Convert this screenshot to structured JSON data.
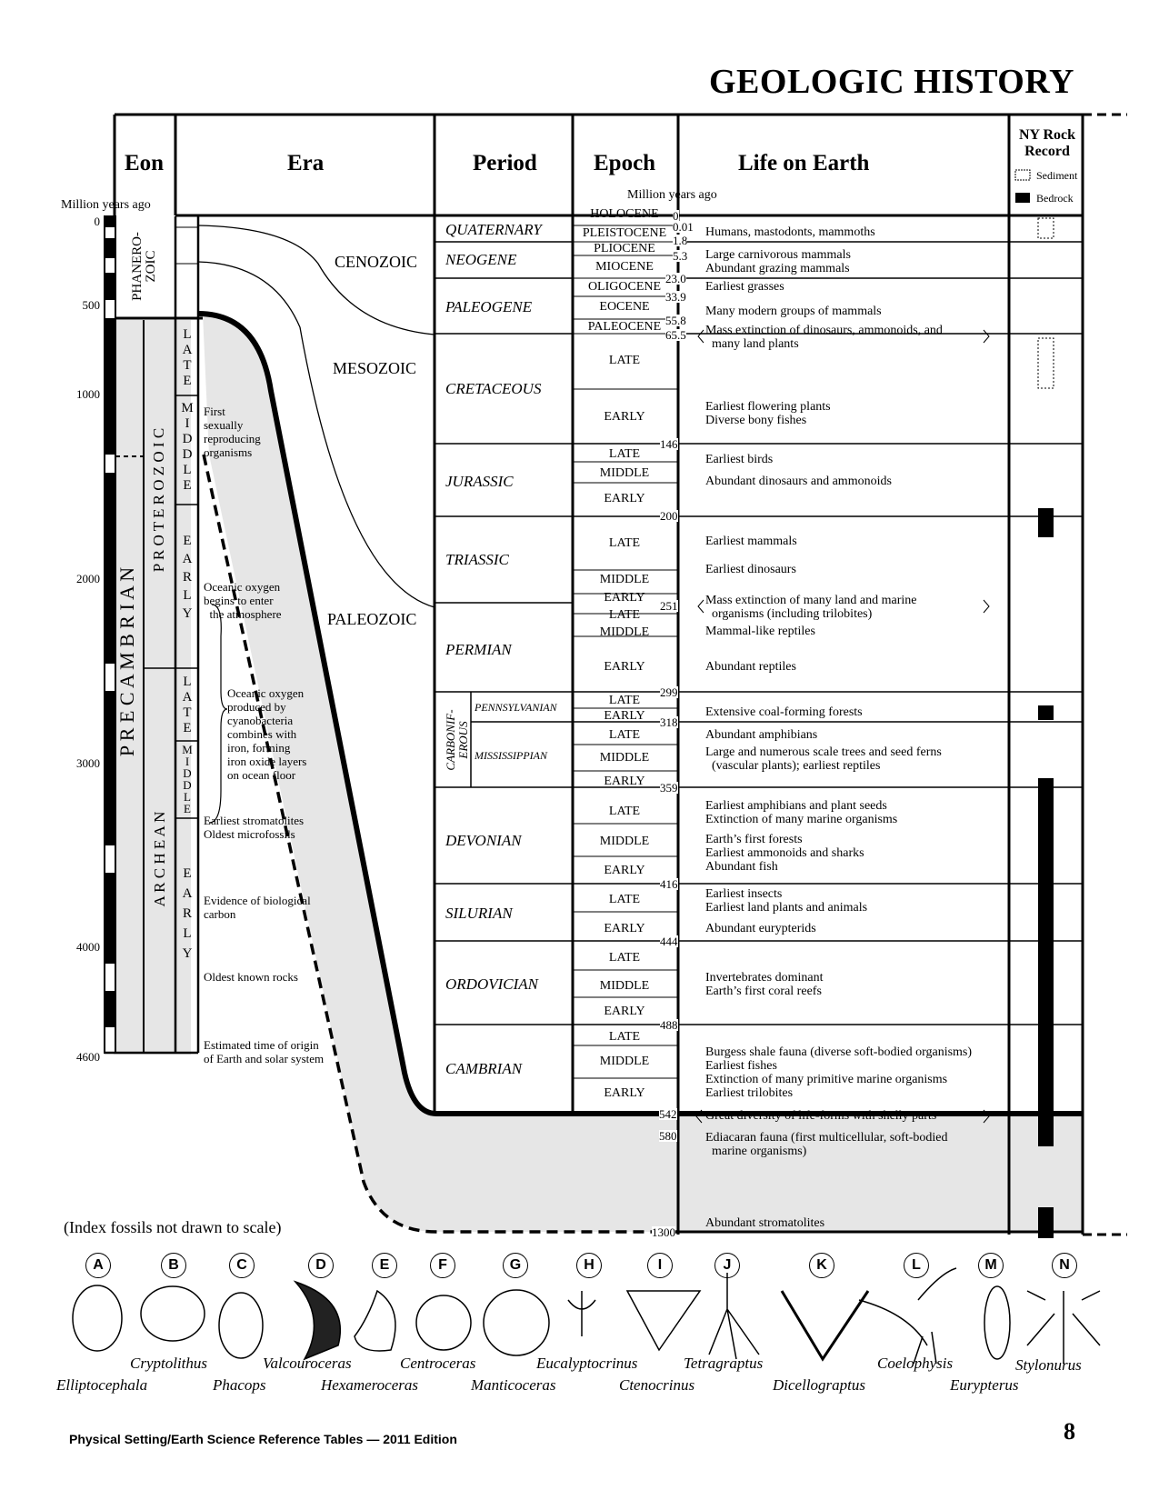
{
  "title": "GEOLOGIC HISTORY",
  "headers": {
    "eon": "Eon",
    "era": "Era",
    "period": "Period",
    "epoch": "Epoch",
    "life": "Life on Earth",
    "ny_rock_record": "NY Rock Record",
    "sediment": "Sediment",
    "bedrock": "Bedrock",
    "mya_left": "Million years ago",
    "mya_right": "Million years ago"
  },
  "left_scale": [
    "0",
    "500",
    "1000",
    "2000",
    "3000",
    "4000",
    "4600"
  ],
  "eons": {
    "phanerozoic": "PHANERO-\nZOIC",
    "precambrian": "P R E C A M B R I A N",
    "proterozoic": "P R O T E R O Z O I C",
    "archean": "A R C H E A N"
  },
  "subdivisions": [
    "L\nA\nT\nE",
    "M\nI\nD\nD\nL\nE",
    "E\nA\nR\nL\nY",
    "L\nA\nT\nE",
    "M\nI\nD\nD\nL\nE",
    "E\nA\nR\nL\nY"
  ],
  "early_events": [
    "First\nsexually\nreproducing\norganisms",
    "Oceanic oxygen\nbegins to enter\n  the atmosphere",
    "Oceanic oxygen\nproduced by\ncyanobacteria\ncombines with\niron, forming\niron oxide layers\non ocean floor",
    "Earliest stromatolites\nOldest microfossils",
    "Evidence of biological\ncarbon",
    "Oldest known rocks",
    "Estimated time of origin\nof Earth and solar system"
  ],
  "eras": [
    "CENOZOIC",
    "MESOZOIC",
    "PALEOZOIC"
  ],
  "periods": [
    "QUATERNARY",
    "NEOGENE",
    "PALEOGENE",
    "CRETACEOUS",
    "JURASSIC",
    "TRIASSIC",
    "PERMIAN",
    "PENNSYLVANIAN",
    "MISSISSIPPIAN",
    "DEVONIAN",
    "SILURIAN",
    "ORDOVICIAN",
    "CAMBRIAN"
  ],
  "carboniferous": "CARBONIF-\nEROUS",
  "epochs": [
    "HOLOCENE",
    "PLEISTOCENE",
    "PLIOCENE",
    "MIOCENE",
    "OLIGOCENE",
    "EOCENE",
    "PALEOCENE",
    "LATE",
    "EARLY",
    "LATE",
    "MIDDLE",
    "EARLY",
    "LATE",
    "MIDDLE",
    "EARLY",
    "LATE",
    "MIDDLE",
    "EARLY",
    "LATE",
    "EARLY",
    "LATE",
    "MIDDLE",
    "EARLY",
    "LATE",
    "MIDDLE",
    "EARLY",
    "LATE",
    "EARLY",
    "LATE",
    "MIDDLE",
    "EARLY",
    "LATE",
    "MIDDLE",
    "EARLY"
  ],
  "ages": [
    "0",
    "0.01",
    "1.8",
    "5.3",
    "23.0",
    "33.9",
    "55.8",
    "65.5",
    "146",
    "200",
    "251",
    "299",
    "318",
    "359",
    "416",
    "444",
    "488",
    "542",
    "580",
    "1300"
  ],
  "life": [
    "Humans, mastodonts, mammoths",
    "Large carnivorous mammals\nAbundant grazing mammals",
    "Earliest grasses",
    "Many modern groups of mammals",
    "Mass extinction of dinosaurs, ammonoids, and\n  many land plants",
    "Earliest flowering plants\nDiverse bony fishes",
    "Earliest birds",
    "Abundant dinosaurs and ammonoids",
    "Earliest mammals",
    "Earliest dinosaurs",
    "Mass extinction of many land and marine\n  organisms (including trilobites)",
    "Mammal-like reptiles",
    "Abundant reptiles",
    "Extensive coal-forming forests",
    "Abundant amphibians",
    "Large and numerous scale trees and seed ferns\n  (vascular plants); earliest reptiles",
    "Earliest amphibians and plant seeds\nExtinction of many marine organisms",
    "Earth’s first forests\nEarliest ammonoids and sharks\nAbundant fish",
    "Earliest insects\nEarliest land plants and animals",
    "Abundant eurypterids",
    "Invertebrates dominant\nEarth’s first coral reefs",
    "Burgess shale fauna (diverse soft-bodied organisms)\nEarliest fishes\nExtinction of many primitive marine organisms\nEarliest trilobites",
    "Great diversity of life-forms with shelly parts",
    "Ediacaran fauna (first multicellular, soft-bodied\n  marine organisms)",
    "Abundant stromatolites"
  ],
  "index_note": "(Index fossils not drawn to scale)",
  "fossils": [
    {
      "letter": "A",
      "name": "Elliptocephala"
    },
    {
      "letter": "B",
      "name": "Cryptolithus"
    },
    {
      "letter": "C",
      "name": "Phacops"
    },
    {
      "letter": "D",
      "name": "Valcouroceras"
    },
    {
      "letter": "E",
      "name": "Hexameroceras"
    },
    {
      "letter": "F",
      "name": "Centroceras"
    },
    {
      "letter": "G",
      "name": "Manticoceras"
    },
    {
      "letter": "H",
      "name": "Eucalyptocrinus"
    },
    {
      "letter": "I",
      "name": "Ctenocrinus"
    },
    {
      "letter": "J",
      "name": "Tetragraptus"
    },
    {
      "letter": "K",
      "name": "Dicellograptus"
    },
    {
      "letter": "L",
      "name": "Coelophysis"
    },
    {
      "letter": "M",
      "name": "Eurypterus"
    },
    {
      "letter": "N",
      "name": "Stylonurus"
    }
  ],
  "footer": "Physical Setting/Earth Science Reference Tables — 2011 Edition",
  "page_number": "8"
}
